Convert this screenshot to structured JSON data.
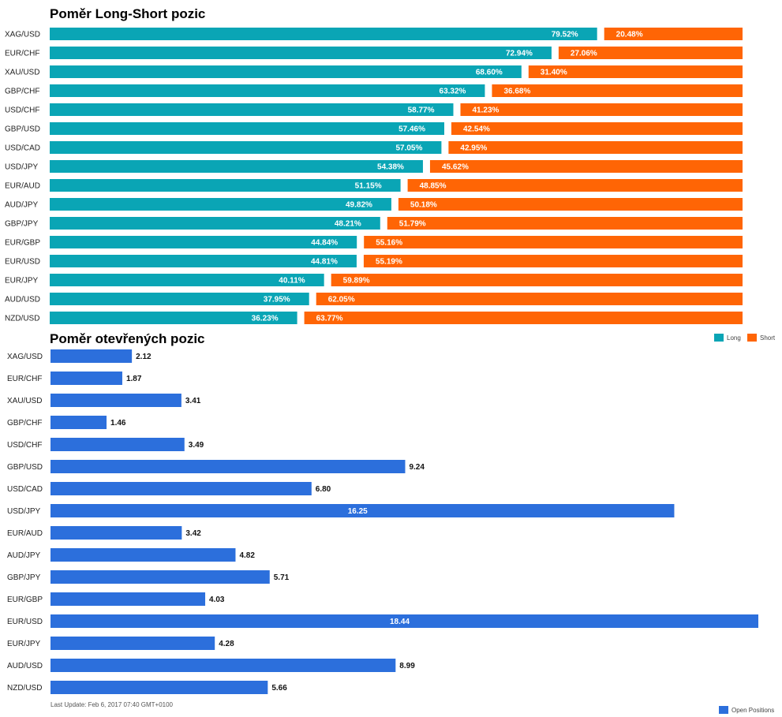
{
  "colors": {
    "long": "#0aa5b5",
    "short": "#ff6505",
    "open": "#2c6fdc"
  },
  "legend": {
    "long": "Long",
    "short": "Short",
    "open": "Open Positions"
  },
  "last_update": "Last Update: Feb 6, 2017 07:40 GMT+0100",
  "chart_data": [
    {
      "type": "bar",
      "title": "Poměr Long-Short pozic",
      "orientation": "horizontal",
      "stacked": true,
      "categories": [
        "XAG/USD",
        "EUR/CHF",
        "XAU/USD",
        "GBP/CHF",
        "USD/CHF",
        "GBP/USD",
        "USD/CAD",
        "USD/JPY",
        "EUR/AUD",
        "AUD/JPY",
        "GBP/JPY",
        "EUR/GBP",
        "EUR/USD",
        "EUR/JPY",
        "AUD/USD",
        "NZD/USD"
      ],
      "series": [
        {
          "name": "Long",
          "values": [
            79.52,
            72.94,
            68.6,
            63.32,
            58.77,
            57.46,
            57.05,
            54.38,
            51.15,
            49.82,
            48.21,
            44.84,
            44.81,
            40.11,
            37.95,
            36.23
          ],
          "labels": [
            "79.52%",
            "72.94%",
            "68.60%",
            "63.32%",
            "58.77%",
            "57.46%",
            "57.05%",
            "54.38%",
            "51.15%",
            "49.82%",
            "48.21%",
            "44.84%",
            "44.81%",
            "40.11%",
            "37.95%",
            "36.23%"
          ]
        },
        {
          "name": "Short",
          "values": [
            20.48,
            27.06,
            31.4,
            36.68,
            41.23,
            42.54,
            42.95,
            45.62,
            48.85,
            50.18,
            51.79,
            55.16,
            55.19,
            59.89,
            62.05,
            63.77
          ],
          "labels": [
            "20.48%",
            "27.06%",
            "31.40%",
            "36.68%",
            "41.23%",
            "42.54%",
            "42.95%",
            "45.62%",
            "48.85%",
            "50.18%",
            "51.79%",
            "55.16%",
            "55.19%",
            "59.89%",
            "62.05%",
            "63.77%"
          ]
        }
      ],
      "xlim": [
        0,
        100
      ],
      "legend_position": "bottom-right"
    },
    {
      "type": "bar",
      "title": "Poměr otevřených pozic",
      "orientation": "horizontal",
      "categories": [
        "XAG/USD",
        "EUR/CHF",
        "XAU/USD",
        "GBP/CHF",
        "USD/CHF",
        "GBP/USD",
        "USD/CAD",
        "USD/JPY",
        "EUR/AUD",
        "AUD/JPY",
        "GBP/JPY",
        "EUR/GBP",
        "EUR/USD",
        "EUR/JPY",
        "AUD/USD",
        "NZD/USD"
      ],
      "series": [
        {
          "name": "Open Positions",
          "values": [
            2.12,
            1.87,
            3.41,
            1.46,
            3.49,
            9.24,
            6.8,
            16.25,
            3.42,
            4.82,
            5.71,
            4.03,
            18.44,
            4.28,
            8.99,
            5.66
          ],
          "labels": [
            "2.12",
            "1.87",
            "3.41",
            "1.46",
            "3.49",
            "9.24",
            "6.80",
            "16.25",
            "3.42",
            "4.82",
            "5.71",
            "4.03",
            "18.44",
            "4.28",
            "8.99",
            "5.66"
          ]
        }
      ],
      "legend_position": "bottom-right"
    }
  ]
}
